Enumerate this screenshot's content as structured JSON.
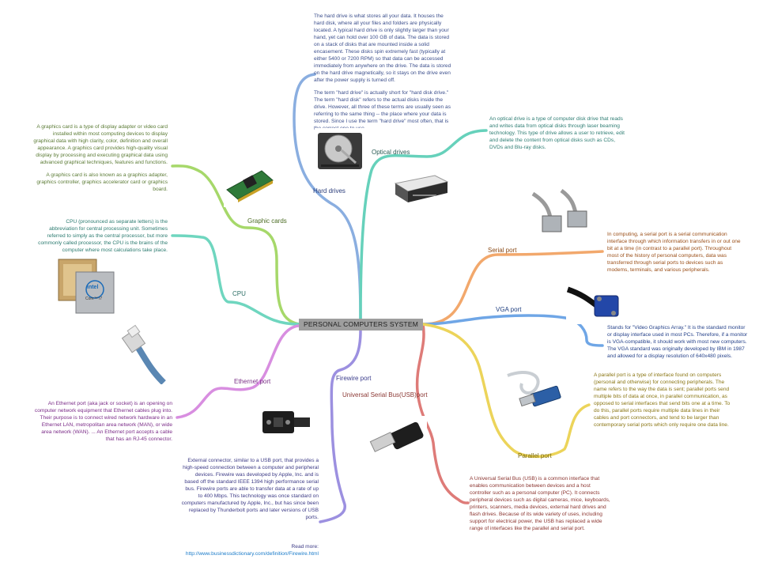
{
  "center": {
    "label": "PERSONAL COMPUTERS SYSTEM"
  },
  "colors": {
    "hard_drives": "#8aaee0",
    "optical_drives": "#66d1bb",
    "graphic_cards": "#a6d86a",
    "cpu": "#6fd6bf",
    "ethernet_port": "#d88ee0",
    "firewire_port": "#9c90e0",
    "usb_port": "#de7b78",
    "serial_port": "#f2a86c",
    "vga_port": "#6fa6e6",
    "parallel_port": "#ecd45a"
  },
  "branches": {
    "hard_drives": {
      "label": "Hard drives",
      "notes": [
        "The hard drive is what stores all your data. It houses the hard disk, where all your files and folders are physically located. A typical hard drive is only slightly larger than your hand, yet can hold over 100 GB of data. The data is stored on a stack of disks that are mounted inside a solid encasement. These disks spin extremely fast (typically at either 5400 or 7200 RPM) so that data can be accessed immediately from anywhere on the drive. The data is stored on the hard drive magnetically, so it stays on the drive even after the power supply is turned off.",
        "The term \"hard drive\" is actually short for \"hard disk drive.\" The term \"hard disk\" refers to the actual disks inside the drive. However, all three of these terms are usually seen as referring to the same thing -- the place where your data is stored. Since I use the term \"hard drive\" most often, that is the correct one to use."
      ]
    },
    "optical_drives": {
      "label": "Optical drives",
      "note": "An optical drive is a type of computer disk drive that reads and writes data from optical disks through laser beaming technology. This type of drive allows a user to retrieve, edit and delete the content from optical disks such as CDs, DVDs and Blu-ray disks."
    },
    "graphic_cards": {
      "label": "Graphic cards",
      "notes": [
        "A graphics card is a type of display adapter or video card installed within most computing devices to display graphical data with high clarity, color, definition and overall appearance. A graphics card provides high-quality visual display by processing and executing graphical data using advanced graphical techniques, features and functions.",
        "A graphics card is also known as a graphics adapter, graphics controller, graphics accelerator card or graphics board."
      ]
    },
    "cpu": {
      "label": "CPU",
      "note": "CPU (pronounced as separate letters) is the abbreviation for central processing unit. Sometimes referred to simply as the central processor, but more commonly called processor, the CPU is the brains of the computer where most calculations take place.",
      "chip_brand": "intel",
      "chip_model": "Core™ i7"
    },
    "ethernet_port": {
      "label": "Ethernet port",
      "note": "An Ethernet port (aka jack or socket) is an opening on computer network equipment that Ethernet cables plug into. Their purpose is to connect wired network hardware in an Ethernet LAN, metropolitan area network (MAN), or wide area network (WAN). ... An Ethernet port accepts a cable that has an RJ-45 connector."
    },
    "firewire_port": {
      "label": "Firewire port",
      "note": "External connector, similar to a USB port, that provides a high-speed connection between a computer and peripheral devices. Firewire was developed by Apple, Inc. and is based off the standard IEEE 1394 high performance serial bus. Firewire ports are able to transfer data at a rate of up to 400 Mbps. This technology was once standard on computers manufactured by Apple, Inc., but has since been replaced by Thunderbolt ports and later versions of USB ports.",
      "read_more_label": "Read more:",
      "read_more_link": "http://www.businessdictionary.com/definition/Firewire.html"
    },
    "usb_port": {
      "label": "Universal Serial Bus(USB)port",
      "note": "A Universal Serial Bus (USB) is a common interface that enables communication between devices and a host controller such as a personal computer (PC). It connects peripheral devices such as digital cameras, mice, keyboards, printers, scanners, media devices, external hard drives and flash drives. Because of its wide variety of uses, including support for electrical power, the USB has replaced a wide range of interfaces like the parallel and serial port."
    },
    "serial_port": {
      "label": "Serial port",
      "note": "In computing, a serial port is a serial communication interface through which information transfers in or out one bit at a time (in contrast to a parallel port). Throughout most of the history of personal computers, data was transferred through serial ports to devices such as modems, terminals, and various peripherals."
    },
    "vga_port": {
      "label": "VGA port",
      "note": "Stands for \"Video Graphics Array.\" It is the standard monitor or display interface used in most PCs. Therefore, if a monitor is VGA-compatible, it should work with most new computers. The VGA standard was originally developed by IBM in 1987 and allowed for a display resolution of 640x480 pixels."
    },
    "parallel_port": {
      "label": "Parallel port",
      "note": "A parallel port is a type of interface found on computers (personal and otherwise) for connecting peripherals. The name refers to the way the data is sent; parallel ports send multiple bits of data at once, in parallel communication, as opposed to serial interfaces that send bits one at a time. To do this, parallel ports require multiple data lines in their cables and port connectors, and tend to be larger than contemporary serial ports which only require one data line."
    }
  }
}
